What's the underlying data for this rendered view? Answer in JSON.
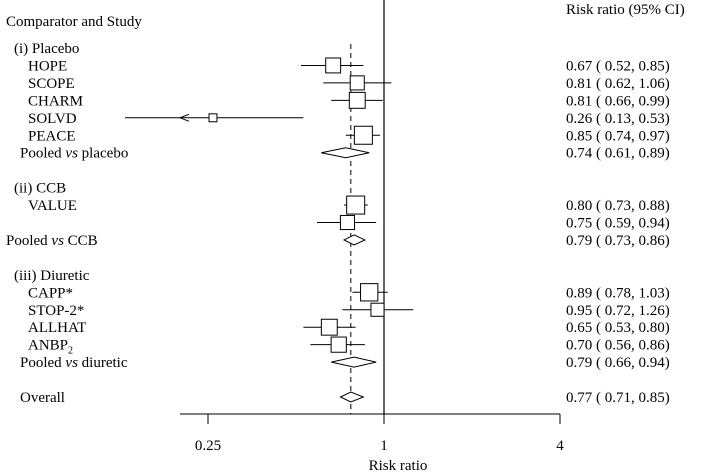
{
  "chart_data": {
    "type": "forest",
    "title": "",
    "header": {
      "left": "Comparator and Study",
      "right": "Risk ratio   (95% CI)"
    },
    "xlabel": "Risk ratio",
    "xscale": "log",
    "xlim": [
      0.17,
      6.0
    ],
    "xticks": [
      {
        "value": 0.25,
        "label": "0.25"
      },
      {
        "value": 1,
        "label": "1"
      },
      {
        "value": 4,
        "label": "4"
      }
    ],
    "reference_line": 1,
    "overall_line": 0.77,
    "rows": [
      {
        "kind": "group",
        "label": "(i) Placebo"
      },
      {
        "kind": "study",
        "label": "HOPE",
        "rr": 0.67,
        "lo": 0.52,
        "hi": 0.85,
        "ci": "0.67 ( 0.52, 0.85)",
        "weight": 0.78
      },
      {
        "kind": "study",
        "label": "SCOPE",
        "rr": 0.81,
        "lo": 0.62,
        "hi": 1.06,
        "ci": "0.81 ( 0.62, 1.06)",
        "weight": 0.72
      },
      {
        "kind": "study",
        "label": "CHARM",
        "rr": 0.81,
        "lo": 0.66,
        "hi": 0.99,
        "ci": "0.81 ( 0.66, 0.99)",
        "weight": 0.85
      },
      {
        "kind": "study",
        "label": "SOLVD",
        "rr": 0.26,
        "lo": 0.13,
        "hi": 0.53,
        "ci": "0.26 ( 0.13, 0.53)",
        "weight": 0.28,
        "arrow_left": true
      },
      {
        "kind": "study",
        "label": "PEACE",
        "rr": 0.85,
        "lo": 0.74,
        "hi": 0.97,
        "ci": "0.85 ( 0.74, 0.97)",
        "weight": 1.0
      },
      {
        "kind": "pooled",
        "label": "Pooled ",
        "label_em": "vs",
        "label_tail": " placebo",
        "rr": 0.74,
        "lo": 0.61,
        "hi": 0.89,
        "ci": "0.74 ( 0.61, 0.89)"
      },
      {
        "kind": "spacer"
      },
      {
        "kind": "group",
        "label": "(ii) CCB"
      },
      {
        "kind": "study",
        "label": "VALUE",
        "rr": 0.8,
        "lo": 0.73,
        "hi": 0.88,
        "ci": "0.80 ( 0.73, 0.88)",
        "weight": 1.0
      },
      {
        "kind": "study",
        "label": "",
        "rr": 0.75,
        "lo": 0.59,
        "hi": 0.94,
        "ci": "0.75 ( 0.59, 0.94)",
        "weight": 0.72
      },
      {
        "kind": "pooled",
        "label": "Pooled ",
        "label_em": "vs",
        "label_tail": " CCB",
        "rr": 0.79,
        "lo": 0.73,
        "hi": 0.86,
        "ci": "0.79 ( 0.73, 0.86)",
        "indent": "none"
      },
      {
        "kind": "spacer"
      },
      {
        "kind": "group",
        "label": "(iii) Diuretic"
      },
      {
        "kind": "study",
        "label": "CAPP*",
        "rr": 0.89,
        "lo": 0.78,
        "hi": 1.03,
        "ci": "0.89 ( 0.78, 1.03)",
        "weight": 0.95
      },
      {
        "kind": "study",
        "label": "STOP-2*",
        "rr": 0.95,
        "lo": 0.72,
        "hi": 1.26,
        "ci": "0.95 ( 0.72, 1.26)",
        "weight": 0.65
      },
      {
        "kind": "study",
        "label": "ALLHAT",
        "rr": 0.65,
        "lo": 0.53,
        "hi": 0.8,
        "ci": "0.65 ( 0.53, 0.80)",
        "weight": 0.85
      },
      {
        "kind": "study",
        "label": "ANBP",
        "label_sub": "2",
        "rr": 0.7,
        "lo": 0.56,
        "hi": 0.86,
        "ci": "0.70 ( 0.56, 0.86)",
        "weight": 0.8
      },
      {
        "kind": "pooled",
        "label": "Pooled ",
        "label_em": "vs",
        "label_tail": " diuretic",
        "rr": 0.79,
        "lo": 0.66,
        "hi": 0.94,
        "ci": "0.79 ( 0.66, 0.94)"
      },
      {
        "kind": "spacer"
      },
      {
        "kind": "pooled",
        "label": "Overall",
        "rr": 0.77,
        "lo": 0.71,
        "hi": 0.85,
        "ci": "0.77 ( 0.71, 0.85)"
      }
    ]
  }
}
